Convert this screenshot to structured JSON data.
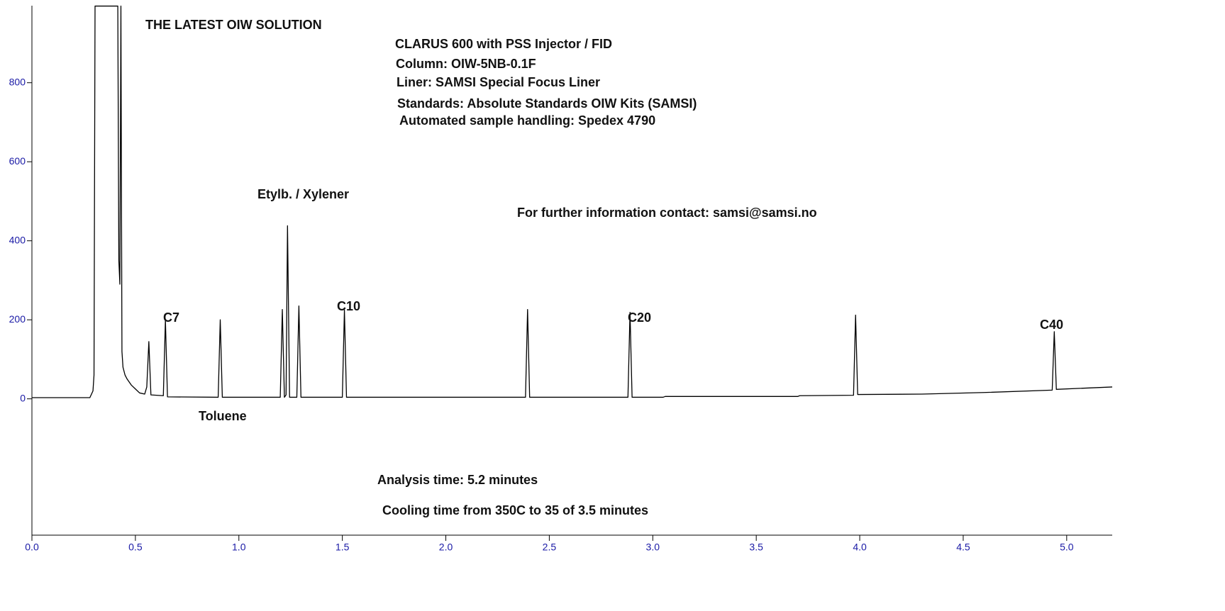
{
  "chart_data": {
    "type": "line",
    "x": [
      0,
      0.28,
      0.295,
      0.3,
      0.305,
      0.415,
      0.42,
      0.425,
      0.43,
      0.435,
      0.44,
      0.45,
      0.46,
      0.48,
      0.5,
      0.52,
      0.545,
      0.555,
      0.565,
      0.575,
      0.635,
      0.645,
      0.655,
      0.9,
      0.91,
      0.92,
      1.2,
      1.21,
      1.22,
      1.228,
      1.235,
      1.245,
      1.28,
      1.29,
      1.3,
      1.5,
      1.51,
      1.52,
      2.385,
      2.395,
      2.405,
      2.88,
      2.89,
      2.9,
      3.05,
      3.06,
      3.7,
      3.71,
      3.97,
      3.98,
      3.99,
      4.3,
      4.6,
      4.93,
      4.94,
      4.95,
      5.22
    ],
    "values": [
      3,
      3,
      20,
      60,
      994,
      994,
      350,
      290,
      994,
      120,
      80,
      60,
      50,
      35,
      25,
      15,
      12,
      30,
      145,
      10,
      8,
      200,
      5,
      4,
      200,
      4,
      4,
      226,
      4,
      10,
      438,
      4,
      4,
      235,
      4,
      4,
      225,
      4,
      4,
      226,
      4,
      4,
      219,
      4,
      4,
      6,
      6,
      8,
      9,
      212,
      11,
      12,
      16,
      22,
      170,
      24,
      30
    ],
    "color": "#000000",
    "xlim": [
      0,
      5.22
    ],
    "ylim": [
      -345,
      995
    ],
    "xticks": [
      {
        "value": 0,
        "label": "0.0"
      },
      0.5,
      {
        "value": 1,
        "label": "1.0"
      },
      1.5,
      {
        "value": 2,
        "label": "2.0"
      },
      2.5,
      {
        "value": 3,
        "label": "3.0"
      },
      3.5,
      {
        "value": 4,
        "label": "4.0"
      },
      4.5,
      {
        "value": 5,
        "label": "5.0"
      }
    ],
    "yticks": [
      0,
      200,
      400,
      600,
      800
    ],
    "annotations": [
      "THE LATEST OIW SOLUTION",
      "CLARUS 600 with PSS Injector / FID",
      "Column: OIW-5NB-0.1F",
      "Liner: SAMSI Special Focus Liner",
      "Standards: Absolute Standards OIW Kits (SAMSI)",
      "Automated sample handling: Spedex 4790",
      "Etylb. / Xylener",
      "For further information contact: samsi@samsi.no",
      "C7",
      "C10",
      "C20",
      "C40",
      "Toluene",
      "Analysis time: 5.2 minutes",
      "Cooling time from 350C to 35 of 3.5 minutes"
    ]
  }
}
